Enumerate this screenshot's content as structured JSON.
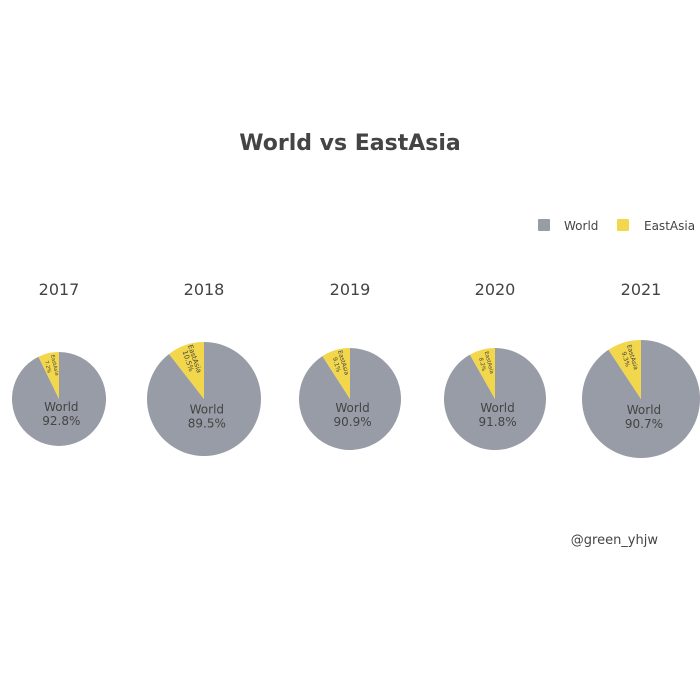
{
  "chart_data": {
    "type": "pie",
    "title": "World vs EastAsia",
    "legend": {
      "placement": "top-right",
      "entries": [
        {
          "name": "World",
          "color": "#989ca6"
        },
        {
          "name": "EastAsia",
          "color": "#f2d64b"
        }
      ]
    },
    "pies": [
      {
        "year": "2017",
        "slices": [
          {
            "name": "World",
            "value": 92.8,
            "label": "World\n92.8%"
          },
          {
            "name": "EastAsia",
            "value": 7.2,
            "label": "EastAsia\n7.2%"
          }
        ]
      },
      {
        "year": "2018",
        "slices": [
          {
            "name": "World",
            "value": 89.5,
            "label": "World\n89.5%"
          },
          {
            "name": "EastAsia",
            "value": 10.5,
            "label": "EastAsia\n10.5%"
          }
        ]
      },
      {
        "year": "2019",
        "slices": [
          {
            "name": "World",
            "value": 90.9,
            "label": "World\n90.9%"
          },
          {
            "name": "EastAsia",
            "value": 9.1,
            "label": "EastAsia\n9.1%"
          }
        ]
      },
      {
        "year": "2020",
        "slices": [
          {
            "name": "World",
            "value": 91.8,
            "label": "World\n91.8%"
          },
          {
            "name": "EastAsia",
            "value": 8.2,
            "label": "EastAsia\n8.2%"
          }
        ]
      },
      {
        "year": "2021",
        "slices": [
          {
            "name": "World",
            "value": 90.7,
            "label": "World\n90.7%"
          },
          {
            "name": "EastAsia",
            "value": 9.3,
            "label": "EastAsia\n9.3%"
          }
        ]
      }
    ]
  },
  "credit": "@green_yhjw"
}
